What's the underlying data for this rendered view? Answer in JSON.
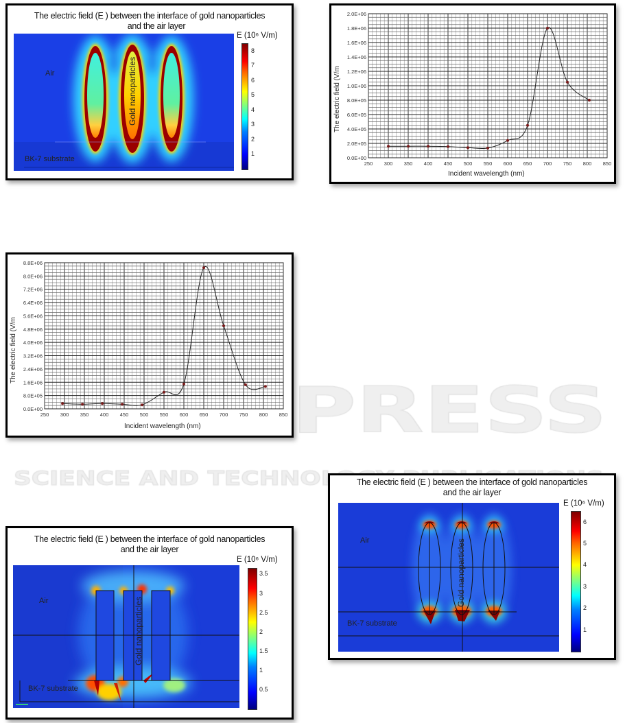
{
  "watermark": {
    "line1": "SCITEPRESS",
    "line2": "SCIENCE AND TECHNOLOGY PUBLICATIONS"
  },
  "heatmaps": [
    {
      "title_line1": "The electric  field (E ) between  the interface of gold nanoparticles",
      "title_line2": "and the air layer",
      "unit": "E (10⁶  V/m)",
      "colorbar_ticks": [
        "8",
        "7",
        "6",
        "5",
        "4",
        "3",
        "2",
        "1"
      ],
      "colorbar_max": 8.5,
      "label_air": "Air",
      "label_substrate": "BK-7 substrate",
      "label_particles": "Gold nanoparticles"
    },
    {
      "title_line1": "The electric  field (E ) between  the interface of gold nanoparticles",
      "title_line2": "and the air layer",
      "unit": "E (10⁶  V/m)",
      "colorbar_ticks": [
        "6",
        "5",
        "4",
        "3",
        "2",
        "1"
      ],
      "colorbar_max": 6.5,
      "label_air": "Air",
      "label_substrate": "BK-7 substrate",
      "label_particles": "Gold nanoparticles"
    },
    {
      "title_line1": "The electric  field (E ) between  the interface of gold nanoparticles",
      "title_line2": "and the air layer",
      "unit": "E (10⁶  V/m)",
      "colorbar_ticks": [
        "3.5",
        "3",
        "2.5",
        "2",
        "1.5",
        "1",
        "0.5"
      ],
      "colorbar_max": 3.65,
      "label_air": "Air",
      "label_substrate": "BK-7 substrate",
      "label_particles": "Gold nanoparticles"
    }
  ],
  "chart_data": [
    {
      "type": "line",
      "xlabel": "Incident wavelength (nm)",
      "ylabel": "The electric field (V/m",
      "xlim": [
        250,
        850
      ],
      "ylim": [
        0,
        2000000
      ],
      "xticks": [
        "250",
        "300",
        "350",
        "400",
        "450",
        "500",
        "550",
        "600",
        "650",
        "700",
        "750",
        "800",
        "850"
      ],
      "yticks": [
        "0.0E+00",
        "2.0E+05",
        "4.0E+05",
        "6.0E+05",
        "8.0E+05",
        "1.0E+06",
        "1.2E+06",
        "1.4E+06",
        "1.6E+06",
        "1.8E+06",
        "2.0E+06"
      ],
      "grid": true,
      "x": [
        300,
        350,
        400,
        450,
        500,
        550,
        600,
        650,
        700,
        750,
        805
      ],
      "y": [
        160000,
        160000,
        160000,
        155000,
        140000,
        135000,
        240000,
        450000,
        1800000,
        1050000,
        800000
      ]
    },
    {
      "type": "line",
      "xlabel": "Incident wavelength (nm)",
      "ylabel": "The electric field (V/m",
      "xlim": [
        250,
        850
      ],
      "ylim": [
        0,
        8800000
      ],
      "xticks": [
        "250",
        "300",
        "350",
        "400",
        "450",
        "500",
        "550",
        "600",
        "650",
        "700",
        "750",
        "800",
        "850"
      ],
      "yticks": [
        "0.0E+00",
        "8.0E+05",
        "1.6E+06",
        "2.4E+06",
        "3.2E+06",
        "4.0E+06",
        "4.8E+06",
        "5.6E+06",
        "6.4E+06",
        "7.2E+06",
        "8.0E+06",
        "8.8E+06"
      ],
      "grid": true,
      "x": [
        295,
        345,
        395,
        445,
        495,
        550,
        600,
        650,
        700,
        755,
        805
      ],
      "y": [
        320000,
        280000,
        320000,
        280000,
        240000,
        1000000,
        1500000,
        8500000,
        5000000,
        1450000,
        1350000
      ]
    }
  ]
}
